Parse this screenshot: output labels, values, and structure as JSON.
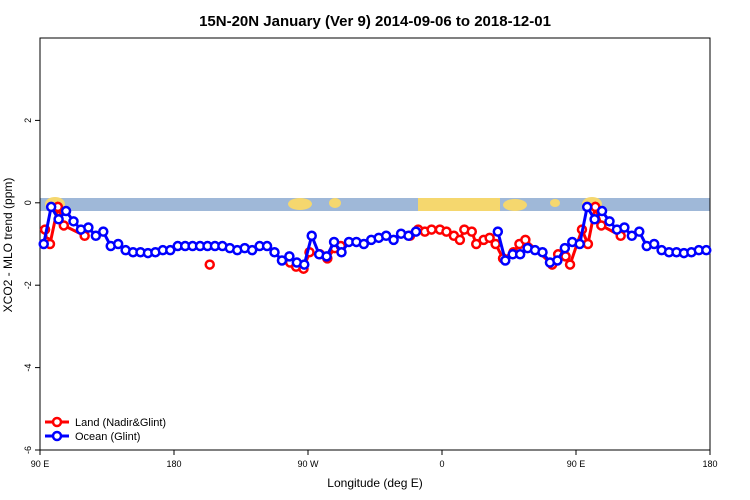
{
  "chart_data": {
    "type": "line",
    "title": "15N-20N January (Ver 9)   2014-09-06 to 2018-12-01",
    "x_label": "Longitude (deg E)",
    "y_label": "XCO2 - MLO trend (ppm)",
    "xlim": [
      90,
      540
    ],
    "xticks": [
      {
        "value": 90,
        "label": "90 E"
      },
      180,
      {
        "value": 270,
        "label": "90 W"
      },
      {
        "value": 360,
        "label": "0"
      },
      {
        "value": 450,
        "label": "90 E"
      },
      {
        "value": 540,
        "label": "180"
      }
    ],
    "ylim": [
      -6,
      4
    ],
    "yticks": [
      -6,
      -4,
      -2,
      0,
      2
    ],
    "legend": "bottom-left",
    "series": [
      {
        "name": "Land (Nadir&Glint)",
        "color": "#ff0000",
        "x": [
          93.4,
          94.7,
          96.7,
          102,
          106,
          120,
          204,
          258,
          262,
          267,
          271,
          278,
          283,
          288,
          292,
          338.5,
          344,
          348.5,
          353,
          358.6,
          363,
          368,
          372,
          375,
          380,
          383,
          388,
          392,
          396,
          401,
          408,
          412,
          416,
          434,
          438,
          443,
          446,
          454,
          458,
          463,
          467,
          480
        ],
        "values": [
          -0.65,
          -0.95,
          -1.0,
          -0.1,
          -0.55,
          -0.8,
          -1.5,
          -1.45,
          -1.55,
          -1.6,
          -1.2,
          -1.25,
          -1.35,
          -1.1,
          -1.05,
          -0.8,
          -0.65,
          -0.7,
          -0.65,
          -0.65,
          -0.7,
          -0.8,
          -0.9,
          -0.65,
          -0.7,
          -1.0,
          -0.9,
          -0.85,
          -1.0,
          -1.35,
          -1.2,
          -1.0,
          -0.9,
          -1.5,
          -1.25,
          -1.3,
          -1.5,
          -0.65,
          -1.0,
          -0.1,
          -0.55,
          -0.8
        ]
      },
      {
        "name": "Ocean (Glint)",
        "color": "#0000ff",
        "x": [
          92.5,
          97.5,
          102.5,
          107.5,
          112.5,
          117.5,
          122.5,
          127.5,
          132.5,
          137.5,
          142.5,
          147.5,
          152.5,
          157.5,
          162.5,
          167.5,
          172.5,
          177.5,
          182.5,
          187.5,
          192.5,
          197.5,
          202.5,
          207.5,
          212.5,
          217.5,
          222.5,
          227.5,
          232.5,
          237.5,
          242.5,
          247.5,
          252.5,
          257.5,
          262.5,
          267.5,
          272.5,
          277.5,
          282.5,
          287.5,
          292.5,
          297.5,
          302.5,
          307.5,
          312.5,
          317.5,
          322.5,
          327.5,
          332.5,
          337.5,
          342.5,
          397.5,
          402.5,
          407.5,
          412.5,
          417.5,
          422.5,
          427.5,
          432.5,
          437.5,
          442.5,
          447.5,
          452.5,
          457.5,
          462.5,
          467.5,
          472.5,
          477.5,
          482.5,
          487.5,
          492.5,
          497.5,
          502.5,
          507.5,
          512.5,
          517.5,
          522.5,
          527.5,
          532.5,
          537.5
        ],
        "values": [
          -1.0,
          -0.1,
          -0.4,
          -0.2,
          -0.45,
          -0.65,
          -0.6,
          -0.8,
          -0.7,
          -1.05,
          -1.0,
          -1.15,
          -1.2,
          -1.2,
          -1.22,
          -1.2,
          -1.15,
          -1.15,
          -1.05,
          -1.05,
          -1.05,
          -1.05,
          -1.05,
          -1.05,
          -1.05,
          -1.1,
          -1.15,
          -1.1,
          -1.15,
          -1.05,
          -1.05,
          -1.2,
          -1.4,
          -1.3,
          -1.45,
          -1.5,
          -0.8,
          -1.25,
          -1.3,
          -0.95,
          -1.2,
          -0.95,
          -0.95,
          -1.0,
          -0.9,
          -0.85,
          -0.8,
          -0.9,
          -0.75,
          -0.8,
          -0.7,
          -0.7,
          -1.4,
          -1.25,
          -1.25,
          -1.1,
          -1.15,
          -1.2,
          -1.45,
          -1.4,
          -1.1,
          -0.95,
          -1.0,
          -0.1,
          -0.4,
          -0.2,
          -0.45,
          -0.65,
          -0.6,
          -0.8,
          -0.7,
          -1.05,
          -1.0,
          -1.15,
          -1.2,
          -1.2,
          -1.22,
          -1.2,
          -1.15,
          -1.15
        ]
      }
    ]
  }
}
